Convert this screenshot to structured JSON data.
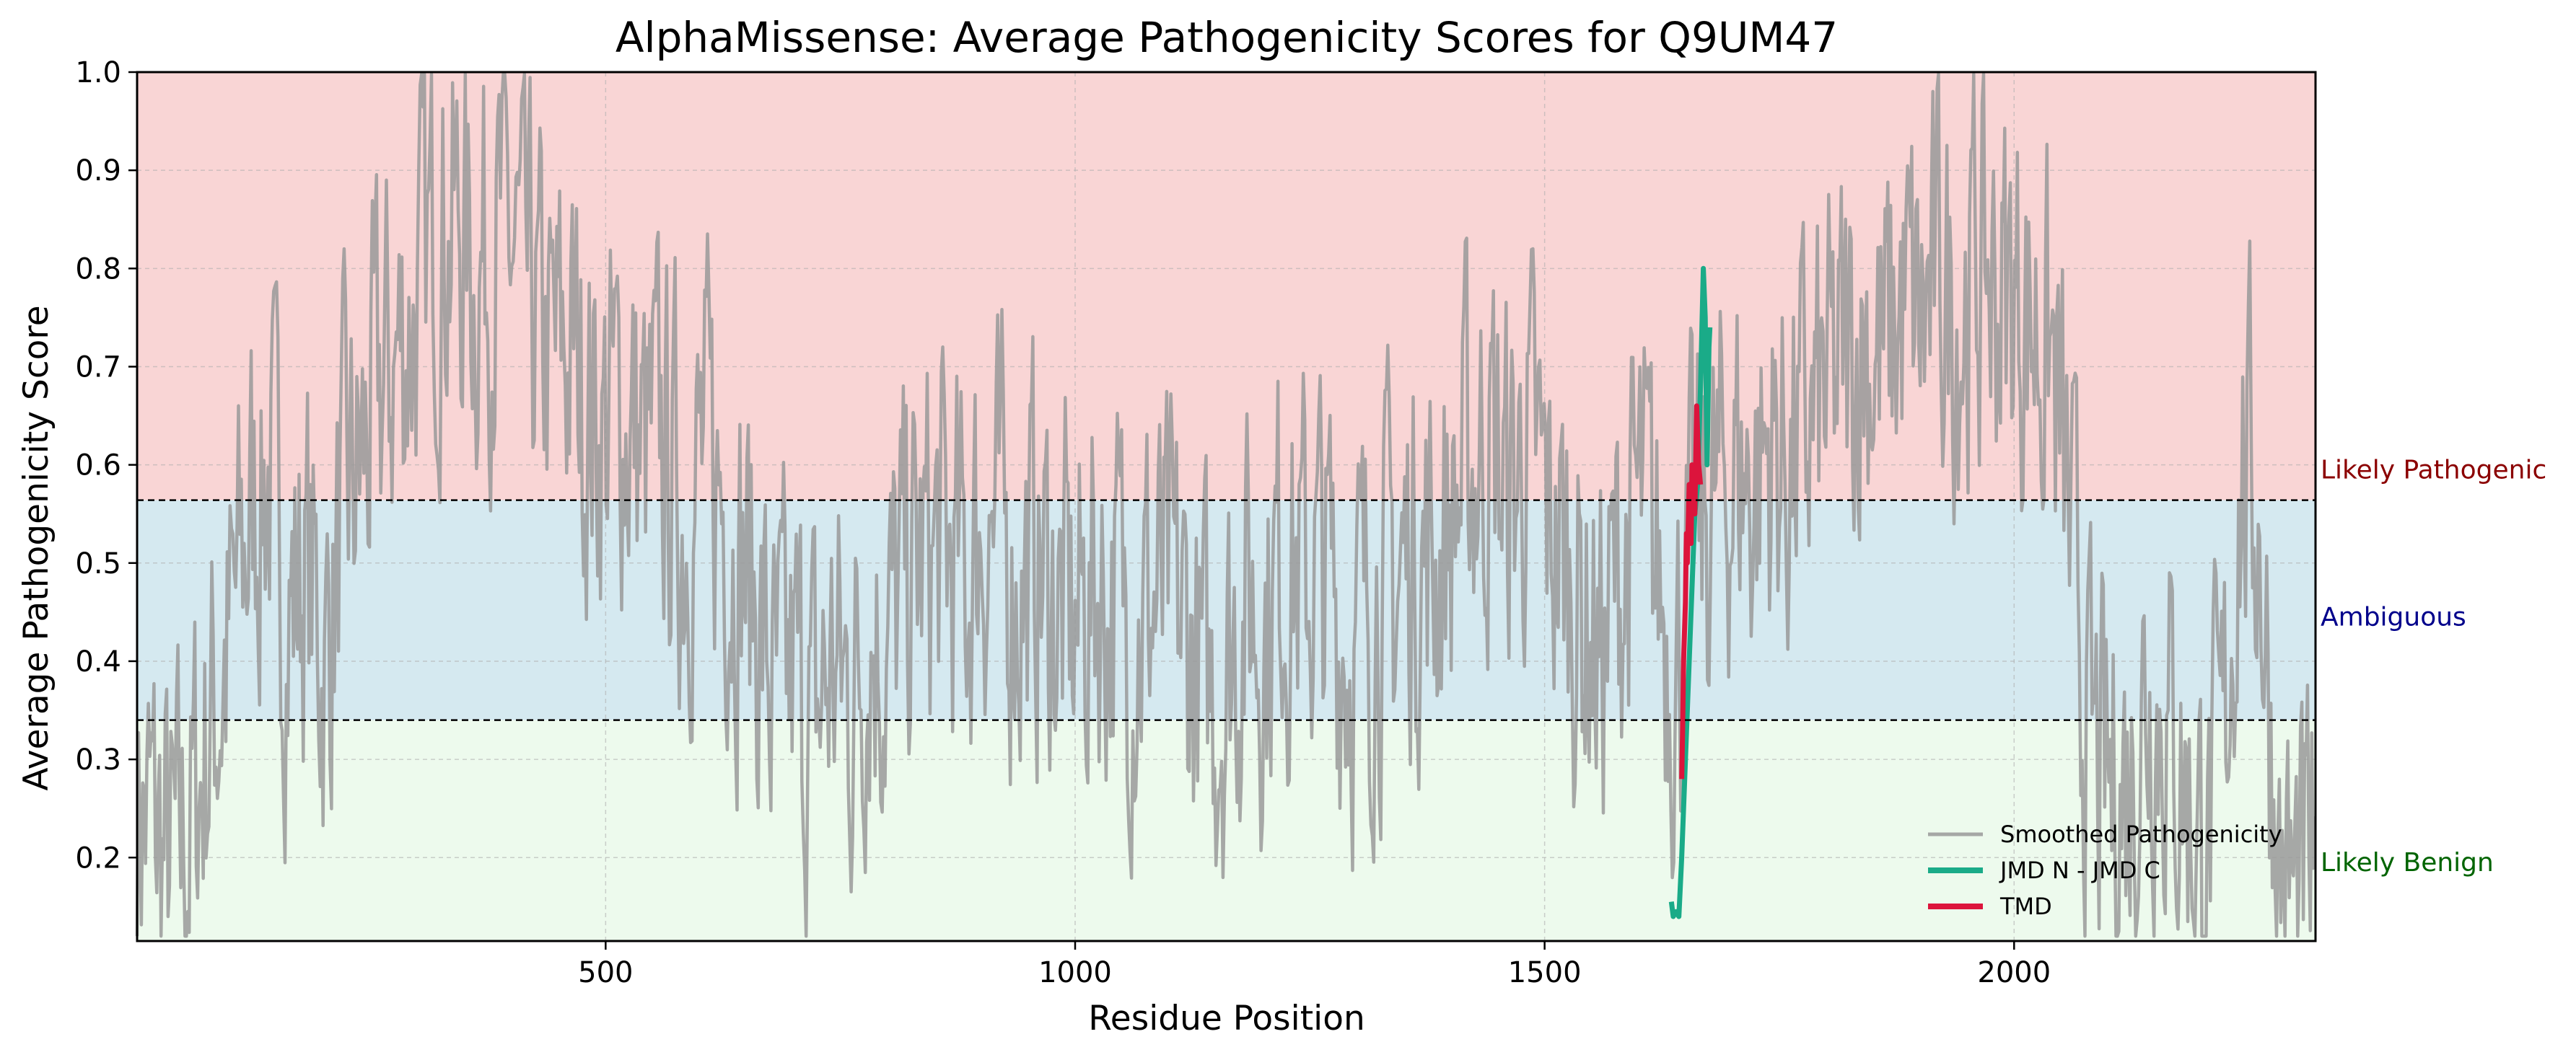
{
  "chart_data": {
    "type": "line",
    "title": "AlphaMissense: Average Pathogenicity Scores for Q9UM47",
    "xlabel": "Residue Position",
    "ylabel": "Average Pathogenicity Score",
    "xlim": [
      1,
      2321
    ],
    "ylim": [
      0.115,
      1.0
    ],
    "x_ticks": [
      500,
      1000,
      1500,
      2000
    ],
    "y_ticks": [
      0.2,
      0.3,
      0.4,
      0.5,
      0.6,
      0.7,
      0.8,
      0.9,
      1.0
    ],
    "grid": true,
    "thresholds": [
      0.34,
      0.564
    ],
    "regions": [
      {
        "label": "Likely Pathogenic",
        "from": 0.564,
        "to": 1.0,
        "fill": "#f9d5d5",
        "text_color": "#8b0000"
      },
      {
        "label": "Ambiguous",
        "from": 0.34,
        "to": 0.564,
        "fill": "#d5e9f0",
        "text_color": "#00008b"
      },
      {
        "label": "Likely Benign",
        "from": 0.115,
        "to": 0.34,
        "fill": "#edfaed",
        "text_color": "#006400"
      }
    ],
    "legend": {
      "position": "lower-right",
      "entries": [
        "Smoothed Pathogenicity",
        "JMD N - JMD C",
        "TMD"
      ]
    },
    "series": [
      {
        "name": "Smoothed Pathogenicity",
        "color": "#999999",
        "profile": [
          [
            1,
            0.26
          ],
          [
            20,
            0.22
          ],
          [
            40,
            0.18
          ],
          [
            60,
            0.25
          ],
          [
            80,
            0.35
          ],
          [
            100,
            0.42
          ],
          [
            120,
            0.55
          ],
          [
            140,
            0.6
          ],
          [
            160,
            0.45
          ],
          [
            180,
            0.5
          ],
          [
            200,
            0.4
          ],
          [
            220,
            0.55
          ],
          [
            240,
            0.6
          ],
          [
            260,
            0.68
          ],
          [
            280,
            0.72
          ],
          [
            300,
            0.78
          ],
          [
            320,
            0.85
          ],
          [
            340,
            0.84
          ],
          [
            360,
            0.8
          ],
          [
            380,
            0.83
          ],
          [
            400,
            0.82
          ],
          [
            420,
            0.74
          ],
          [
            440,
            0.7
          ],
          [
            460,
            0.72
          ],
          [
            480,
            0.66
          ],
          [
            500,
            0.64
          ],
          [
            520,
            0.66
          ],
          [
            540,
            0.6
          ],
          [
            560,
            0.62
          ],
          [
            580,
            0.55
          ],
          [
            600,
            0.6
          ],
          [
            620,
            0.58
          ],
          [
            640,
            0.52
          ],
          [
            660,
            0.45
          ],
          [
            680,
            0.34
          ],
          [
            700,
            0.38
          ],
          [
            720,
            0.33
          ],
          [
            740,
            0.4
          ],
          [
            760,
            0.36
          ],
          [
            780,
            0.45
          ],
          [
            800,
            0.42
          ],
          [
            820,
            0.48
          ],
          [
            840,
            0.5
          ],
          [
            860,
            0.52
          ],
          [
            880,
            0.47
          ],
          [
            900,
            0.55
          ],
          [
            920,
            0.52
          ],
          [
            940,
            0.48
          ],
          [
            960,
            0.5
          ],
          [
            980,
            0.45
          ],
          [
            1000,
            0.43
          ],
          [
            1020,
            0.48
          ],
          [
            1040,
            0.47
          ],
          [
            1060,
            0.44
          ],
          [
            1080,
            0.46
          ],
          [
            1100,
            0.45
          ],
          [
            1120,
            0.42
          ],
          [
            1140,
            0.36
          ],
          [
            1160,
            0.4
          ],
          [
            1180,
            0.47
          ],
          [
            1200,
            0.44
          ],
          [
            1220,
            0.52
          ],
          [
            1240,
            0.48
          ],
          [
            1260,
            0.5
          ],
          [
            1280,
            0.45
          ],
          [
            1300,
            0.42
          ],
          [
            1320,
            0.48
          ],
          [
            1340,
            0.47
          ],
          [
            1360,
            0.52
          ],
          [
            1380,
            0.5
          ],
          [
            1400,
            0.55
          ],
          [
            1420,
            0.6
          ],
          [
            1440,
            0.63
          ],
          [
            1460,
            0.56
          ],
          [
            1480,
            0.62
          ],
          [
            1500,
            0.55
          ],
          [
            1520,
            0.5
          ],
          [
            1540,
            0.45
          ],
          [
            1560,
            0.4
          ],
          [
            1580,
            0.5
          ],
          [
            1600,
            0.55
          ],
          [
            1620,
            0.48
          ],
          [
            1640,
            0.4
          ],
          [
            1660,
            0.52
          ],
          [
            1680,
            0.55
          ],
          [
            1700,
            0.6
          ],
          [
            1720,
            0.58
          ],
          [
            1740,
            0.62
          ],
          [
            1760,
            0.6
          ],
          [
            1780,
            0.63
          ],
          [
            1800,
            0.66
          ],
          [
            1820,
            0.7
          ],
          [
            1840,
            0.74
          ],
          [
            1860,
            0.7
          ],
          [
            1880,
            0.76
          ],
          [
            1900,
            0.74
          ],
          [
            1920,
            0.78
          ],
          [
            1940,
            0.76
          ],
          [
            1960,
            0.8
          ],
          [
            1980,
            0.78
          ],
          [
            2000,
            0.77
          ],
          [
            2020,
            0.75
          ],
          [
            2040,
            0.7
          ],
          [
            2060,
            0.5
          ],
          [
            2080,
            0.3
          ],
          [
            2100,
            0.26
          ],
          [
            2120,
            0.28
          ],
          [
            2140,
            0.38
          ],
          [
            2160,
            0.35
          ],
          [
            2180,
            0.28
          ],
          [
            2200,
            0.2
          ],
          [
            2220,
            0.28
          ],
          [
            2240,
            0.6
          ],
          [
            2260,
            0.55
          ],
          [
            2280,
            0.2
          ],
          [
            2300,
            0.14
          ],
          [
            2321,
            0.2
          ]
        ]
      },
      {
        "name": "JMD N - JMD C",
        "color": "#1aab88",
        "points": [
          [
            1635,
            0.155
          ],
          [
            1637,
            0.14
          ],
          [
            1640,
            0.145
          ],
          [
            1643,
            0.14
          ],
          [
            1646,
            0.2
          ],
          [
            1660,
            0.55
          ],
          [
            1663,
            0.58
          ],
          [
            1666,
            0.68
          ],
          [
            1669,
            0.8
          ],
          [
            1671,
            0.75
          ],
          [
            1673,
            0.6
          ],
          [
            1675,
            0.72
          ],
          [
            1676,
            0.74
          ]
        ]
      },
      {
        "name": "TMD",
        "color": "#dc143c",
        "points": [
          [
            1646,
            0.28
          ],
          [
            1647,
            0.33
          ],
          [
            1648,
            0.4
          ],
          [
            1650,
            0.46
          ],
          [
            1651,
            0.53
          ],
          [
            1652,
            0.5
          ],
          [
            1654,
            0.58
          ],
          [
            1656,
            0.52
          ],
          [
            1657,
            0.6
          ],
          [
            1659,
            0.56
          ],
          [
            1660,
            0.55
          ],
          [
            1662,
            0.66
          ],
          [
            1664,
            0.6
          ],
          [
            1666,
            0.58
          ]
        ]
      }
    ]
  }
}
